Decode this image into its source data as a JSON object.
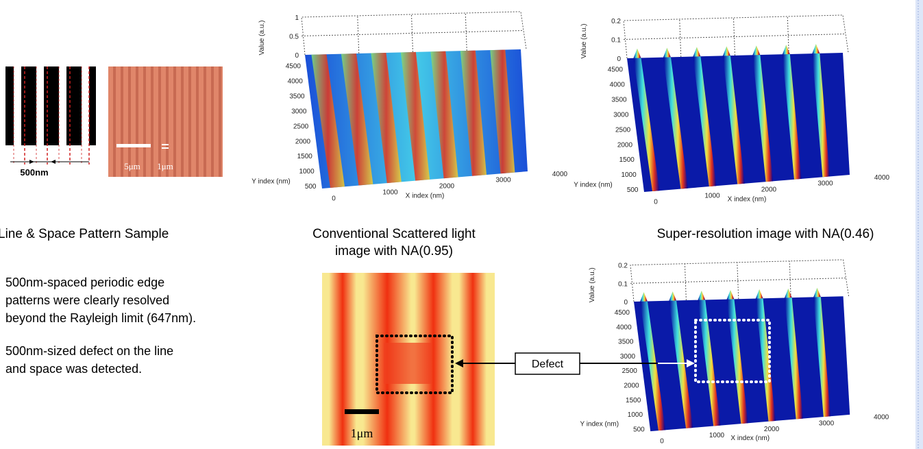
{
  "sample": {
    "scale_label": "500nm",
    "micro_scales": [
      "5μm",
      "1μm"
    ],
    "caption": "Line & Space Pattern Sample"
  },
  "plots": [
    {
      "z_label": "Value (a.u.)",
      "z_ticks": [
        "1",
        "0.5",
        "0"
      ],
      "y_label": "Y index (nm)",
      "y_ticks": [
        "4500",
        "4000",
        "3500",
        "3000",
        "2500",
        "2000",
        "1500",
        "1000",
        "500"
      ],
      "x_label": "X index (nm)",
      "x_ticks": [
        "0",
        "1000",
        "2000",
        "3000",
        "4000"
      ],
      "caption": [
        "Conventional Scattered light",
        "image with NA(0.95)"
      ]
    },
    {
      "z_label": "Value (a.u.)",
      "z_ticks": [
        "0.2",
        "0.1",
        "0"
      ],
      "y_label": "Y index (nm)",
      "y_ticks": [
        "4500",
        "4000",
        "3500",
        "3000",
        "2500",
        "2000",
        "1500",
        "1000",
        "500"
      ],
      "x_label": "X index (nm)",
      "x_ticks": [
        "0",
        "1000",
        "2000",
        "3000",
        "4000"
      ],
      "caption": [
        "Super-resolution image with NA(0.46)"
      ]
    },
    {
      "z_label": "Value (a.u.)",
      "z_ticks": [
        "0.2",
        "0.1",
        "0"
      ],
      "y_label": "Y index (nm)",
      "y_ticks": [
        "4500",
        "4000",
        "3500",
        "3000",
        "2500",
        "2000",
        "1500",
        "1000",
        "500"
      ],
      "x_label": "X index (nm)",
      "x_ticks": [
        "0",
        "1000",
        "2000",
        "3000",
        "4000"
      ],
      "caption": []
    }
  ],
  "notes": [
    [
      "500nm-spaced periodic edge",
      "patterns were clearly resolved",
      "beyond the Rayleigh limit (647nm)."
    ],
    [
      "500nm-sized defect on the line",
      "and space was detected."
    ]
  ],
  "defect": {
    "label": "Defect",
    "scale_label": "1μm"
  }
}
